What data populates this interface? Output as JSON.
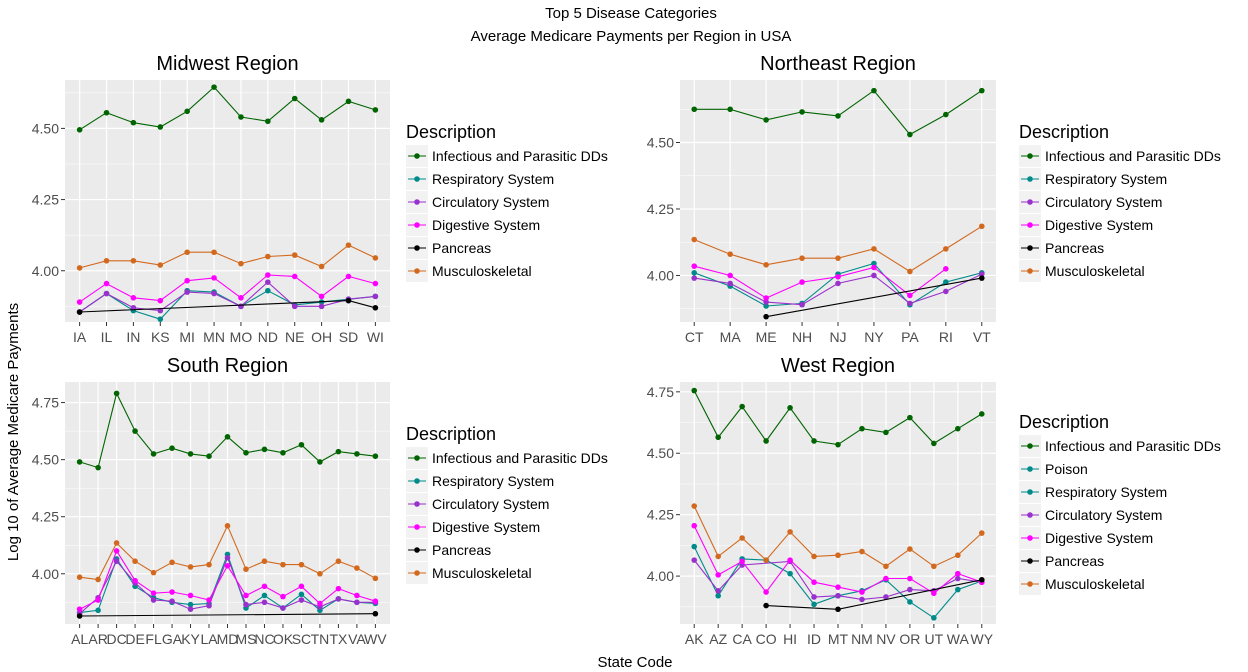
{
  "figure": {
    "title": "Top 5 Disease Categories",
    "subtitle": "Average Medicare Payments per Region in USA",
    "ylabel": "Log 10 of Average Medicare Payments",
    "xlabel": "State Code"
  },
  "colors": {
    "panel_bg": "#ebebeb",
    "grid": "#ffffff",
    "Infectious and Parasitic DDs": "#006400",
    "Poison": "#008b8b",
    "Respiratory System": "#008b8b",
    "Circulatory System": "#9932cc",
    "Digestive System": "#ff00ff",
    "Pancreas": "#000000",
    "Musculoskeletal": "#d2691e"
  },
  "chart_data": [
    {
      "type": "line",
      "title": "Midwest Region",
      "legend_title": "Description",
      "legend_position": "right",
      "grid": true,
      "categories": [
        "IA",
        "IL",
        "IN",
        "KS",
        "MI",
        "MN",
        "MO",
        "ND",
        "NE",
        "OH",
        "SD",
        "WI"
      ],
      "ylim": [
        3.82,
        4.67
      ],
      "yticks": [
        4.0,
        4.25,
        4.5
      ],
      "ytick_labels": [
        "4.00",
        "4.25",
        "4.50"
      ],
      "series": [
        {
          "name": "Infectious and Parasitic DDs",
          "values": [
            4.495,
            4.555,
            4.52,
            4.505,
            4.56,
            4.645,
            4.54,
            4.525,
            4.605,
            4.53,
            4.595,
            4.565
          ]
        },
        {
          "name": "Respiratory System",
          "values": [
            3.855,
            3.92,
            3.86,
            3.83,
            3.93,
            3.925,
            3.875,
            3.93,
            3.88,
            3.89,
            3.9,
            3.91
          ]
        },
        {
          "name": "Circulatory System",
          "values": [
            3.855,
            3.92,
            3.87,
            3.86,
            3.925,
            3.92,
            3.875,
            3.96,
            3.875,
            3.875,
            3.9,
            3.91
          ]
        },
        {
          "name": "Digestive System",
          "values": [
            3.89,
            3.955,
            3.905,
            3.895,
            3.965,
            3.975,
            3.905,
            3.985,
            3.98,
            3.91,
            3.98,
            3.955
          ]
        },
        {
          "name": "Pancreas",
          "values": [
            3.855,
            null,
            null,
            null,
            null,
            null,
            null,
            null,
            null,
            null,
            3.895,
            3.87
          ]
        },
        {
          "name": "Musculoskeletal",
          "values": [
            4.01,
            4.035,
            4.035,
            4.02,
            4.065,
            4.065,
            4.025,
            4.05,
            4.055,
            4.015,
            4.09,
            4.045
          ]
        }
      ]
    },
    {
      "type": "line",
      "title": "Northeast Region",
      "legend_title": "Description",
      "legend_position": "right",
      "grid": true,
      "categories": [
        "CT",
        "MA",
        "ME",
        "NH",
        "NJ",
        "NY",
        "PA",
        "RI",
        "VT"
      ],
      "ylim": [
        3.825,
        4.735
      ],
      "yticks": [
        4.0,
        4.25,
        4.5
      ],
      "ytick_labels": [
        "4.00",
        "4.25",
        "4.50"
      ],
      "series": [
        {
          "name": "Infectious and Parasitic DDs",
          "values": [
            4.625,
            4.625,
            4.585,
            4.615,
            4.6,
            4.695,
            4.53,
            4.605,
            4.695
          ]
        },
        {
          "name": "Respiratory System",
          "values": [
            4.01,
            3.96,
            3.885,
            3.895,
            4.005,
            4.045,
            3.89,
            3.975,
            4.01
          ]
        },
        {
          "name": "Circulatory System",
          "values": [
            3.99,
            3.97,
            3.9,
            3.89,
            3.97,
            4.0,
            3.895,
            3.94,
            4.005
          ]
        },
        {
          "name": "Digestive System",
          "values": [
            4.035,
            4.0,
            3.915,
            3.975,
            3.995,
            4.03,
            3.925,
            4.025,
            null
          ]
        },
        {
          "name": "Pancreas",
          "values": [
            null,
            null,
            3.845,
            null,
            null,
            null,
            null,
            null,
            3.99
          ]
        },
        {
          "name": "Musculoskeletal",
          "values": [
            4.135,
            4.08,
            4.04,
            4.065,
            4.065,
            4.1,
            4.015,
            4.1,
            4.185
          ]
        }
      ]
    },
    {
      "type": "line",
      "title": "South Region",
      "legend_title": "Description",
      "legend_position": "right",
      "grid": true,
      "categories": [
        "AL",
        "AR",
        "DC",
        "DE",
        "FL",
        "GA",
        "KY",
        "LA",
        "MD",
        "MS",
        "NC",
        "OK",
        "SC",
        "TN",
        "TX",
        "VA",
        "WV"
      ],
      "ylim": [
        3.78,
        4.84
      ],
      "yticks": [
        4.0,
        4.25,
        4.5,
        4.75
      ],
      "ytick_labels": [
        "4.00",
        "4.25",
        "4.50",
        "4.75"
      ],
      "series": [
        {
          "name": "Infectious and Parasitic DDs",
          "values": [
            4.49,
            4.465,
            4.79,
            4.625,
            4.525,
            4.55,
            4.525,
            4.515,
            4.6,
            4.53,
            4.545,
            4.53,
            4.565,
            4.49,
            4.535,
            4.525,
            4.515
          ]
        },
        {
          "name": "Respiratory System",
          "values": [
            3.83,
            3.84,
            4.065,
            3.945,
            3.895,
            3.875,
            3.865,
            3.87,
            4.085,
            3.85,
            3.905,
            3.85,
            3.91,
            3.84,
            3.89,
            3.875,
            3.87
          ]
        },
        {
          "name": "Circulatory System",
          "values": [
            3.825,
            3.895,
            4.055,
            3.96,
            3.885,
            3.88,
            3.845,
            3.86,
            4.07,
            3.865,
            3.875,
            3.85,
            3.885,
            3.855,
            3.89,
            3.875,
            3.875
          ]
        },
        {
          "name": "Digestive System",
          "values": [
            3.845,
            3.885,
            4.1,
            3.97,
            3.915,
            3.92,
            3.905,
            3.885,
            4.035,
            3.905,
            3.945,
            3.9,
            3.945,
            3.87,
            3.935,
            3.905,
            3.88
          ]
        },
        {
          "name": "Pancreas",
          "values": [
            3.815,
            null,
            null,
            null,
            null,
            null,
            null,
            null,
            null,
            null,
            null,
            null,
            null,
            null,
            null,
            null,
            3.825
          ]
        },
        {
          "name": "Musculoskeletal",
          "values": [
            3.985,
            3.975,
            4.135,
            4.055,
            4.005,
            4.05,
            4.03,
            4.04,
            4.21,
            4.02,
            4.055,
            4.04,
            4.04,
            4.0,
            4.055,
            4.025,
            3.98
          ]
        }
      ]
    },
    {
      "type": "line",
      "title": "West Region",
      "legend_title": "Description",
      "legend_position": "right",
      "grid": true,
      "categories": [
        "AK",
        "AZ",
        "CA",
        "CO",
        "HI",
        "ID",
        "MT",
        "NM",
        "NV",
        "OR",
        "UT",
        "WA",
        "WY"
      ],
      "ylim": [
        3.805,
        4.79
      ],
      "yticks": [
        4.0,
        4.25,
        4.5,
        4.75
      ],
      "ytick_labels": [
        "4.00",
        "4.25",
        "4.50",
        "4.75"
      ],
      "series": [
        {
          "name": "Infectious and Parasitic DDs",
          "values": [
            4.755,
            4.565,
            4.69,
            4.55,
            4.685,
            4.55,
            4.535,
            4.6,
            4.585,
            4.645,
            4.54,
            4.6,
            4.66
          ]
        },
        {
          "name": "Poison",
          "values": [
            null,
            null,
            null,
            null,
            null,
            null,
            null,
            null,
            null,
            null,
            null,
            null,
            null
          ]
        },
        {
          "name": "Respiratory System",
          "values": [
            4.12,
            3.92,
            4.07,
            4.065,
            4.01,
            3.885,
            3.92,
            3.94,
            3.985,
            3.895,
            3.83,
            3.945,
            3.98
          ]
        },
        {
          "name": "Circulatory System",
          "values": [
            4.065,
            3.94,
            4.045,
            null,
            4.06,
            3.915,
            3.92,
            3.905,
            3.915,
            3.945,
            3.94,
            3.99,
            3.975
          ]
        },
        {
          "name": "Digestive System",
          "values": [
            4.205,
            4.005,
            4.06,
            3.935,
            4.065,
            3.975,
            3.955,
            3.935,
            3.99,
            3.99,
            3.93,
            4.01,
            3.975
          ]
        },
        {
          "name": "Pancreas",
          "values": [
            null,
            null,
            null,
            3.88,
            null,
            null,
            3.865,
            null,
            null,
            null,
            null,
            null,
            3.985
          ]
        },
        {
          "name": "Musculoskeletal",
          "values": [
            4.285,
            4.08,
            4.155,
            4.065,
            4.18,
            4.08,
            4.085,
            4.1,
            4.04,
            4.11,
            4.04,
            4.085,
            4.175
          ]
        }
      ]
    }
  ]
}
